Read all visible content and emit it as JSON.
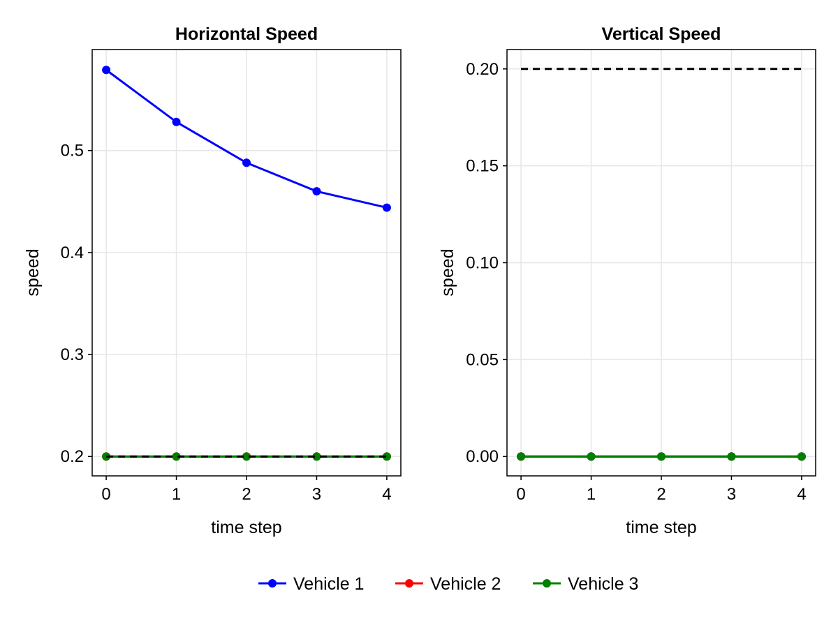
{
  "colors": {
    "vehicle_1": "#0000ff",
    "vehicle_2": "#ff0000",
    "vehicle_3": "#008000",
    "limit_line": "#000000",
    "grid": "#e6e6e6"
  },
  "chart_data": [
    {
      "type": "line",
      "title": "Horizontal Speed",
      "xlabel": "time step",
      "ylabel": "speed",
      "x": [
        0,
        1,
        2,
        3,
        4
      ],
      "xticks": [
        "0",
        "1",
        "2",
        "3",
        "4"
      ],
      "yticks": [
        "0.2",
        "0.3",
        "0.4",
        "0.5"
      ],
      "ytick_values": [
        0.2,
        0.3,
        0.4,
        0.5
      ],
      "xlim": [
        -0.2,
        4.2
      ],
      "ylim": [
        0.181,
        0.599
      ],
      "grid": true,
      "series": [
        {
          "name": "Vehicle 1",
          "values": [
            0.579,
            0.528,
            0.488,
            0.46,
            0.444
          ]
        },
        {
          "name": "Vehicle 2",
          "values": [
            0.2,
            0.2,
            0.2,
            0.2,
            0.2
          ]
        },
        {
          "name": "Vehicle 3",
          "values": [
            0.2,
            0.2,
            0.2,
            0.2,
            0.2
          ]
        }
      ],
      "reference_line": {
        "style": "dashed",
        "values": [
          0.2,
          0.2,
          0.2,
          0.2,
          0.2
        ]
      }
    },
    {
      "type": "line",
      "title": "Vertical Speed",
      "xlabel": "time step",
      "ylabel": "speed",
      "x": [
        0,
        1,
        2,
        3,
        4
      ],
      "xticks": [
        "0",
        "1",
        "2",
        "3",
        "4"
      ],
      "yticks": [
        "0.00",
        "0.05",
        "0.10",
        "0.15",
        "0.20"
      ],
      "ytick_values": [
        0.0,
        0.05,
        0.1,
        0.15,
        0.2
      ],
      "xlim": [
        -0.2,
        4.2
      ],
      "ylim": [
        -0.01,
        0.21
      ],
      "grid": true,
      "series": [
        {
          "name": "Vehicle 1",
          "values": [
            0,
            0,
            0,
            0,
            0
          ]
        },
        {
          "name": "Vehicle 2",
          "values": [
            0,
            0,
            0,
            0,
            0
          ]
        },
        {
          "name": "Vehicle 3",
          "values": [
            0,
            0,
            0,
            0,
            0
          ]
        }
      ],
      "reference_line": {
        "style": "dashed",
        "values": [
          0.2,
          0.2,
          0.2,
          0.2,
          0.2
        ]
      }
    }
  ],
  "legend": {
    "placement": "bottom",
    "entries": [
      "Vehicle 1",
      "Vehicle 2",
      "Vehicle 3"
    ]
  }
}
